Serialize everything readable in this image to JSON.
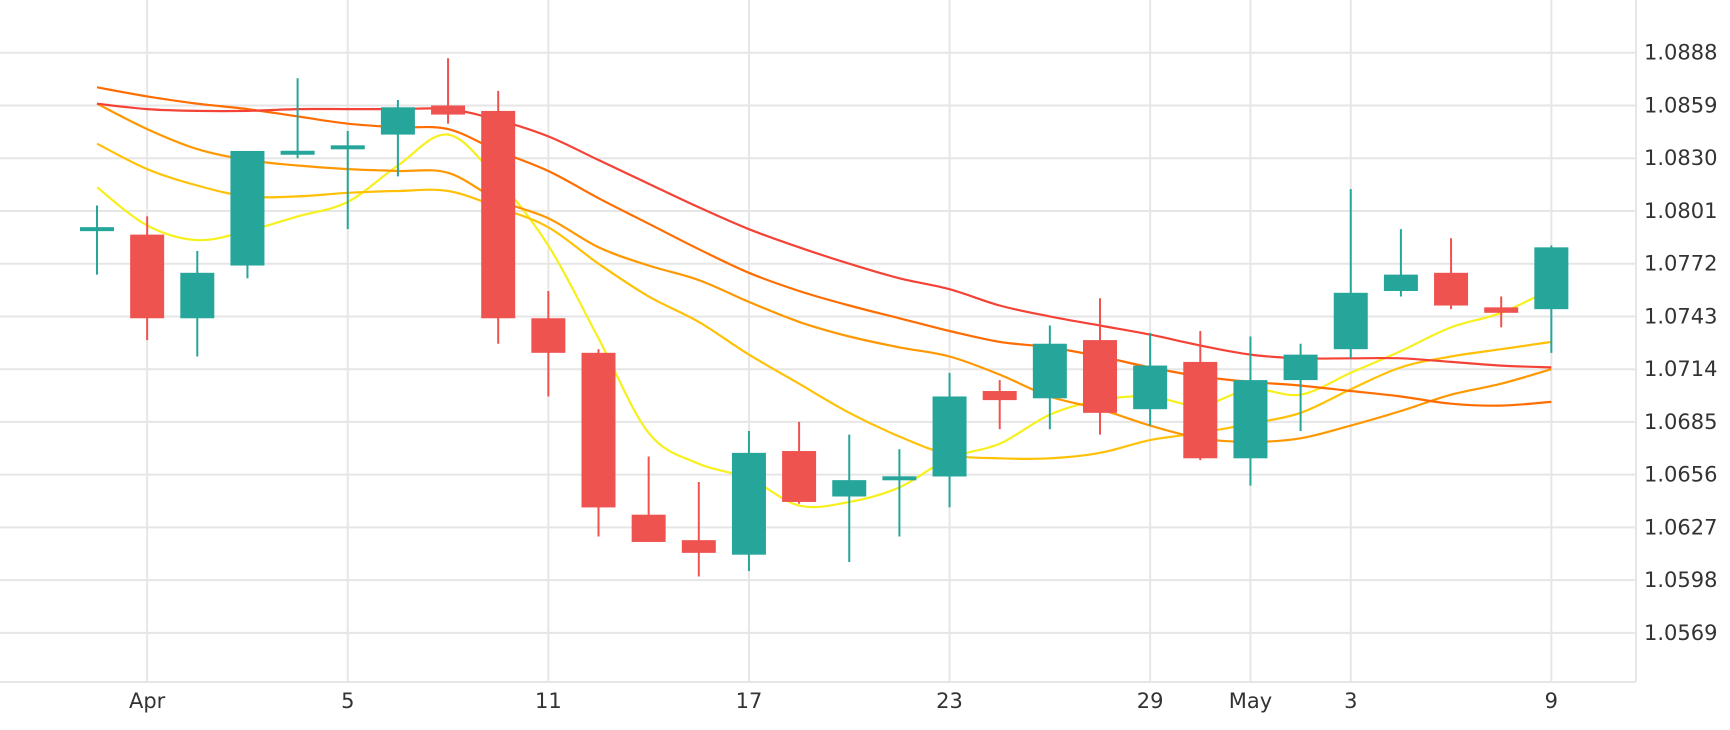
{
  "chart_data": {
    "type": "candlestick",
    "title": "",
    "xlabel": "",
    "ylabel": "",
    "ylim": [
      1.0542,
      1.0917
    ],
    "grid": true,
    "legend": "none",
    "colors": {
      "up": "#26a69a",
      "down": "#ef5350",
      "grid": "#e6e6e6",
      "ma": [
        "#f7f01d",
        "#ffc107",
        "#ff9800",
        "#ff6d00",
        "#f44336"
      ]
    },
    "y_ticks": [
      "1.0569",
      "1.0598",
      "1.0627",
      "1.0656",
      "1.0685",
      "1.0714",
      "1.0743",
      "1.0772",
      "1.0801",
      "1.0830",
      "1.0859",
      "1.0888"
    ],
    "x_ticks": [
      {
        "label": "Apr",
        "x": 1
      },
      {
        "label": "5",
        "x": 5
      },
      {
        "label": "11",
        "x": 9
      },
      {
        "label": "17",
        "x": 13
      },
      {
        "label": "23",
        "x": 17
      },
      {
        "label": "29",
        "x": 21
      },
      {
        "label": "May",
        "x": 23
      },
      {
        "label": "3",
        "x": 25
      },
      {
        "label": "9",
        "x": 29
      }
    ],
    "candles": [
      {
        "x": 0,
        "open": 1.079,
        "high": 1.0804,
        "low": 1.0766,
        "close": 1.0792
      },
      {
        "x": 1,
        "open": 1.0788,
        "high": 1.0798,
        "low": 1.073,
        "close": 1.0742
      },
      {
        "x": 2,
        "open": 1.0742,
        "high": 1.0779,
        "low": 1.0721,
        "close": 1.0767
      },
      {
        "x": 3,
        "open": 1.0771,
        "high": 1.0834,
        "low": 1.0764,
        "close": 1.0834
      },
      {
        "x": 4,
        "open": 1.0832,
        "high": 1.0874,
        "low": 1.083,
        "close": 1.0834
      },
      {
        "x": 5,
        "open": 1.0836,
        "high": 1.0845,
        "low": 1.0791,
        "close": 1.0836
      },
      {
        "x": 6,
        "open": 1.0843,
        "high": 1.0862,
        "low": 1.082,
        "close": 1.0858
      },
      {
        "x": 7,
        "open": 1.0859,
        "high": 1.0885,
        "low": 1.0849,
        "close": 1.0854
      },
      {
        "x": 8,
        "open": 1.0856,
        "high": 1.0867,
        "low": 1.0728,
        "close": 1.0742
      },
      {
        "x": 9,
        "open": 1.0742,
        "high": 1.0757,
        "low": 1.0699,
        "close": 1.0723
      },
      {
        "x": 10,
        "open": 1.0723,
        "high": 1.0725,
        "low": 1.0622,
        "close": 1.0638
      },
      {
        "x": 11,
        "open": 1.0634,
        "high": 1.0666,
        "low": 1.0619,
        "close": 1.0619
      },
      {
        "x": 12,
        "open": 1.062,
        "high": 1.0652,
        "low": 1.06,
        "close": 1.0613
      },
      {
        "x": 13,
        "open": 1.0612,
        "high": 1.068,
        "low": 1.0603,
        "close": 1.0668
      },
      {
        "x": 14,
        "open": 1.0669,
        "high": 1.0685,
        "low": 1.064,
        "close": 1.0641
      },
      {
        "x": 15,
        "open": 1.0644,
        "high": 1.0678,
        "low": 1.0608,
        "close": 1.0653
      },
      {
        "x": 16,
        "open": 1.0654,
        "high": 1.067,
        "low": 1.0622,
        "close": 1.0654
      },
      {
        "x": 17,
        "open": 1.0655,
        "high": 1.0712,
        "low": 1.0638,
        "close": 1.0699
      },
      {
        "x": 18,
        "open": 1.0702,
        "high": 1.0708,
        "low": 1.0681,
        "close": 1.0697
      },
      {
        "x": 19,
        "open": 1.0698,
        "high": 1.0738,
        "low": 1.0681,
        "close": 1.0728
      },
      {
        "x": 20,
        "open": 1.073,
        "high": 1.0753,
        "low": 1.0678,
        "close": 1.069
      },
      {
        "x": 21,
        "open": 1.0692,
        "high": 1.0734,
        "low": 1.0683,
        "close": 1.0716
      },
      {
        "x": 22,
        "open": 1.0718,
        "high": 1.0735,
        "low": 1.0664,
        "close": 1.0665
      },
      {
        "x": 23,
        "open": 1.0665,
        "high": 1.0732,
        "low": 1.065,
        "close": 1.0708
      },
      {
        "x": 24,
        "open": 1.0708,
        "high": 1.0728,
        "low": 1.068,
        "close": 1.0722
      },
      {
        "x": 25,
        "open": 1.0725,
        "high": 1.0813,
        "low": 1.072,
        "close": 1.0756
      },
      {
        "x": 26,
        "open": 1.0757,
        "high": 1.0791,
        "low": 1.0754,
        "close": 1.0766
      },
      {
        "x": 27,
        "open": 1.0767,
        "high": 1.0786,
        "low": 1.0747,
        "close": 1.0749
      },
      {
        "x": 28,
        "open": 1.0748,
        "high": 1.0754,
        "low": 1.0737,
        "close": 1.0745
      },
      {
        "x": 29,
        "open": 1.0747,
        "high": 1.0782,
        "low": 1.0723,
        "close": 1.0781
      }
    ],
    "series": [
      {
        "color": "#f7f01d",
        "x": [
          0,
          1,
          2,
          3,
          4,
          5,
          6,
          7,
          8,
          9,
          10,
          11,
          12,
          13,
          14,
          15,
          16,
          17,
          18,
          19,
          20,
          21,
          22,
          23,
          24,
          25,
          26,
          27,
          28,
          29
        ],
        "values": [
          1.0814,
          1.0793,
          1.0785,
          1.079,
          1.0798,
          1.0806,
          1.0826,
          1.0843,
          1.0818,
          1.0782,
          1.0731,
          1.0679,
          1.0662,
          1.0654,
          1.0639,
          1.0641,
          1.0649,
          1.0665,
          1.0673,
          1.0689,
          1.0697,
          1.0699,
          1.0694,
          1.0703,
          1.07,
          1.0712,
          1.0724,
          1.0737,
          1.0745,
          1.0758
        ]
      },
      {
        "color": "#ffc107",
        "x": [
          0,
          1,
          2,
          3,
          4,
          5,
          6,
          7,
          8,
          9,
          10,
          11,
          12,
          13,
          14,
          15,
          16,
          17,
          18,
          19,
          20,
          21,
          22,
          23,
          24,
          25,
          26,
          27,
          28,
          29
        ],
        "values": [
          1.0838,
          1.0824,
          1.0815,
          1.0809,
          1.0809,
          1.0811,
          1.0812,
          1.0812,
          1.0803,
          1.0792,
          1.0772,
          1.0754,
          1.074,
          1.0722,
          1.0706,
          1.069,
          1.0677,
          1.0667,
          1.0665,
          1.0665,
          1.0668,
          1.0675,
          1.0679,
          1.0684,
          1.069,
          1.0703,
          1.0715,
          1.0721,
          1.0725,
          1.0729
        ]
      },
      {
        "color": "#ff9800",
        "x": [
          0,
          1,
          2,
          3,
          4,
          5,
          6,
          7,
          8,
          9,
          10,
          11,
          12,
          13,
          14,
          15,
          16,
          17,
          18,
          19,
          20,
          21,
          22,
          23,
          24,
          25,
          26,
          27,
          28,
          29
        ],
        "values": [
          1.086,
          1.0846,
          1.0835,
          1.0829,
          1.0826,
          1.0824,
          1.0823,
          1.0822,
          1.0807,
          1.0797,
          1.0781,
          1.0771,
          1.0763,
          1.0751,
          1.074,
          1.0732,
          1.0726,
          1.0721,
          1.0711,
          1.0699,
          1.0692,
          1.0683,
          1.0676,
          1.0674,
          1.0676,
          1.0683,
          1.0691,
          1.07,
          1.0706,
          1.0714
        ]
      },
      {
        "color": "#ff6d00",
        "x": [
          0,
          1,
          2,
          3,
          4,
          5,
          6,
          7,
          8,
          9,
          10,
          11,
          12,
          13,
          14,
          15,
          16,
          17,
          18,
          19,
          20,
          21,
          22,
          23,
          24,
          25,
          26,
          27,
          28,
          29
        ],
        "values": [
          1.0869,
          1.0864,
          1.086,
          1.0857,
          1.0853,
          1.0849,
          1.0847,
          1.0846,
          1.0834,
          1.0823,
          1.0808,
          1.0794,
          1.078,
          1.0767,
          1.0757,
          1.0749,
          1.0742,
          1.0735,
          1.0729,
          1.0726,
          1.0721,
          1.0715,
          1.071,
          1.0707,
          1.0705,
          1.0702,
          1.0699,
          1.0695,
          1.0694,
          1.0696
        ]
      },
      {
        "color": "#f44336",
        "x": [
          0,
          1,
          2,
          3,
          4,
          5,
          6,
          7,
          8,
          9,
          10,
          11,
          12,
          13,
          14,
          15,
          16,
          17,
          18,
          19,
          20,
          21,
          22,
          23,
          24,
          25,
          26,
          27,
          28,
          29
        ],
        "values": [
          1.086,
          1.0857,
          1.0856,
          1.0856,
          1.0857,
          1.0857,
          1.0857,
          1.0857,
          1.0851,
          1.0842,
          1.0829,
          1.0816,
          1.0803,
          1.0791,
          1.0781,
          1.0772,
          1.0764,
          1.0758,
          1.0749,
          1.0743,
          1.0738,
          1.0733,
          1.0727,
          1.0722,
          1.072,
          1.072,
          1.072,
          1.0718,
          1.0716,
          1.0715
        ]
      }
    ]
  }
}
